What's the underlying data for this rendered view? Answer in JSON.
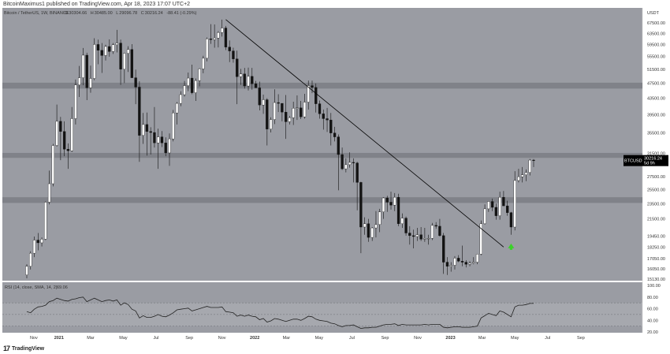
{
  "header": {
    "author": "BitcoinMaximus1",
    "published_text": "published on TradingView.com, Apr 18, 2023 17:07 UTC+2",
    "symbol_line": "Bitcoin / TetherUS, 1W, BINANCE",
    "ohlc": [
      {
        "label": "O",
        "value": "30304.66",
        "color": "#444444"
      },
      {
        "label": "H",
        "value": "30485.00",
        "color": "#444444"
      },
      {
        "label": "L",
        "value": "29096.78",
        "color": "#444444"
      },
      {
        "label": "C",
        "value": "30216.24",
        "color": "#444444"
      },
      {
        "label": "",
        "value": "-88.41 (-0.29%)",
        "color": "#444444"
      }
    ]
  },
  "price_axis": {
    "currency": "USDT",
    "ticks": [
      "67500.00",
      "63500.00",
      "59500.00",
      "55500.00",
      "51500.00",
      "47500.00",
      "43500.00",
      "39500.00",
      "35500.00",
      "31500.00",
      "27500.00",
      "25500.00",
      "23500.00",
      "21500.00",
      "19450.00",
      "18250.00",
      "17050.00",
      "16050.00",
      "15130.00"
    ],
    "price_label": {
      "symbol": "BTCUSDT",
      "price": "30216.24",
      "countdown": "5d 9h"
    }
  },
  "rsi": {
    "label": "RSI (14, close, SMA, 14, 2)",
    "value": "69.06",
    "ticks": [
      "100.00",
      "80.00",
      "60.00",
      "40.00",
      "20.00"
    ]
  },
  "time_axis": {
    "labels": [
      "Nov",
      "2021",
      "Mar",
      "May",
      "Jul",
      "Sep",
      "Nov",
      "2022",
      "Mar",
      "May",
      "Jul",
      "Sep",
      "Nov",
      "2023",
      "Mar",
      "May",
      "Jul",
      "Sep"
    ]
  },
  "footer": {
    "logo": "17",
    "brand": "TradingView"
  },
  "colors": {
    "background": "#9a9ca3",
    "zone": "#7d7f86",
    "candle_up": "#ffffff",
    "candle_down": "#131313",
    "trendline": "#000000",
    "arrow": "#3bd12a",
    "price_label_bg": "#000000"
  },
  "chart_data": {
    "type": "candlestick",
    "title": "Bitcoin / TetherUS, 1W, BINANCE",
    "xlabel": "",
    "ylabel": "",
    "x_range": [
      "2020-11",
      "2023-09"
    ],
    "y_ticks": [
      15130,
      16050,
      17050,
      18250,
      19450,
      21500,
      23500,
      25500,
      27500,
      31500,
      35500,
      39500,
      43500,
      47500,
      51500,
      55500,
      59500,
      63500,
      67500
    ],
    "ohlc_weekly": [
      [
        15500,
        16500,
        15200,
        16300
      ],
      [
        16300,
        17800,
        16000,
        17600
      ],
      [
        17600,
        19400,
        17200,
        19000
      ],
      [
        19000,
        19800,
        17900,
        18700
      ],
      [
        18700,
        19300,
        18300,
        19100
      ],
      [
        19100,
        23800,
        19000,
        23700
      ],
      [
        23700,
        28500,
        23400,
        26400
      ],
      [
        26400,
        33300,
        26000,
        33000
      ],
      [
        33000,
        41900,
        32800,
        38000
      ],
      [
        38000,
        39000,
        30300,
        35800
      ],
      [
        35800,
        38000,
        31000,
        32300
      ],
      [
        32300,
        33400,
        28800,
        32000
      ],
      [
        32000,
        41300,
        31800,
        38600
      ],
      [
        38600,
        48500,
        37300,
        47000
      ],
      [
        47000,
        52500,
        43800,
        49000
      ],
      [
        49000,
        58300,
        46900,
        55900
      ],
      [
        55900,
        56700,
        43000,
        46200
      ],
      [
        46200,
        52600,
        44900,
        48800
      ],
      [
        48800,
        61700,
        48300,
        59500
      ],
      [
        59500,
        61200,
        53000,
        57500
      ],
      [
        57500,
        60000,
        50400,
        55800
      ],
      [
        55800,
        59400,
        54200,
        58800
      ],
      [
        58800,
        61300,
        55400,
        57100
      ],
      [
        57100,
        60000,
        56300,
        59400
      ],
      [
        59400,
        64800,
        56800,
        60000
      ],
      [
        60000,
        61200,
        47000,
        51500
      ],
      [
        51500,
        56000,
        47500,
        56500
      ],
      [
        56500,
        58900,
        50700,
        57800
      ],
      [
        57800,
        59600,
        53000,
        49000
      ],
      [
        49000,
        51400,
        42000,
        46400
      ],
      [
        46400,
        48000,
        30000,
        35000
      ],
      [
        35000,
        39900,
        33300,
        37300
      ],
      [
        37300,
        40000,
        31100,
        35800
      ],
      [
        35800,
        36700,
        31300,
        35600
      ],
      [
        35600,
        41300,
        32600,
        33500
      ],
      [
        33500,
        36400,
        28800,
        34700
      ],
      [
        34700,
        35900,
        32700,
        33500
      ],
      [
        33500,
        34600,
        31000,
        31600
      ],
      [
        31600,
        35400,
        29300,
        34300
      ],
      [
        34300,
        40600,
        33800,
        39900
      ],
      [
        39900,
        42500,
        37300,
        42200
      ],
      [
        42200,
        45300,
        41500,
        44400
      ],
      [
        44400,
        48100,
        43900,
        46800
      ],
      [
        46800,
        50500,
        45300,
        48900
      ],
      [
        48900,
        52900,
        44500,
        44900
      ],
      [
        44900,
        48800,
        42800,
        48200
      ],
      [
        48200,
        51800,
        46600,
        51600
      ],
      [
        51600,
        55700,
        50300,
        54900
      ],
      [
        54900,
        62000,
        53900,
        61500
      ],
      [
        61500,
        67000,
        59700,
        61200
      ],
      [
        61200,
        66900,
        58400,
        61800
      ],
      [
        61800,
        64300,
        58500,
        63800
      ],
      [
        63800,
        68800,
        62300,
        65500
      ],
      [
        65500,
        66300,
        57600,
        58600
      ],
      [
        58600,
        60900,
        53700,
        57300
      ],
      [
        57300,
        58400,
        53500,
        54700
      ],
      [
        54700,
        57400,
        42000,
        49300
      ],
      [
        49300,
        51600,
        47000,
        50100
      ],
      [
        50100,
        51900,
        46000,
        46700
      ],
      [
        46700,
        52000,
        45500,
        49400
      ],
      [
        49400,
        51900,
        45700,
        47300
      ],
      [
        47300,
        48100,
        46400,
        46200
      ],
      [
        46200,
        47900,
        40500,
        41800
      ],
      [
        41800,
        44400,
        39700,
        43100
      ],
      [
        43100,
        43500,
        33000,
        36300
      ],
      [
        36300,
        38900,
        35600,
        38400
      ],
      [
        38400,
        45800,
        37400,
        42400
      ],
      [
        42400,
        44500,
        40100,
        42200
      ],
      [
        42200,
        42200,
        38000,
        40100
      ],
      [
        40100,
        44300,
        34300,
        37900
      ],
      [
        37900,
        39200,
        37300,
        38800
      ],
      [
        38800,
        42600,
        37200,
        41000
      ],
      [
        41000,
        44200,
        38300,
        41100
      ],
      [
        41100,
        42800,
        38500,
        39000
      ],
      [
        39000,
        44600,
        38600,
        42500
      ],
      [
        42500,
        48200,
        40700,
        46800
      ],
      [
        46800,
        48200,
        44800,
        46300
      ],
      [
        46300,
        47400,
        40000,
        42100
      ],
      [
        42100,
        42900,
        38600,
        39700
      ],
      [
        39700,
        40700,
        36200,
        38600
      ],
      [
        38600,
        41100,
        35700,
        38300
      ],
      [
        38300,
        39900,
        33000,
        35500
      ],
      [
        35500,
        36800,
        33800,
        34700
      ],
      [
        34700,
        35200,
        25400,
        31300
      ],
      [
        31300,
        32600,
        28600,
        28800
      ],
      [
        28800,
        30600,
        28200,
        29500
      ],
      [
        29500,
        31700,
        29000,
        29900
      ],
      [
        29900,
        30600,
        26600,
        29800
      ],
      [
        29800,
        30000,
        22600,
        26600
      ],
      [
        26600,
        26700,
        17600,
        20500
      ],
      [
        20500,
        21700,
        19600,
        20900
      ],
      [
        20900,
        21500,
        18800,
        19300
      ],
      [
        19300,
        20500,
        18900,
        20400
      ],
      [
        20400,
        22500,
        19300,
        20800
      ],
      [
        20800,
        22800,
        19900,
        22400
      ],
      [
        22400,
        24400,
        21500,
        24300
      ],
      [
        24300,
        24600,
        22400,
        23700
      ],
      [
        23700,
        25200,
        22700,
        23300
      ],
      [
        23300,
        25000,
        22500,
        24400
      ],
      [
        24400,
        24900,
        20600,
        20900
      ],
      [
        20900,
        22200,
        20400,
        21600
      ],
      [
        21600,
        21800,
        19500,
        19800
      ],
      [
        19800,
        20600,
        18500,
        19500
      ],
      [
        19500,
        20200,
        18100,
        19400
      ],
      [
        19400,
        20400,
        18900,
        19600
      ],
      [
        19600,
        20500,
        18900,
        19100
      ],
      [
        19100,
        20400,
        18800,
        19200
      ],
      [
        19200,
        19600,
        18500,
        19200
      ],
      [
        19200,
        21000,
        19000,
        20700
      ],
      [
        20700,
        21100,
        20300,
        20600
      ],
      [
        20600,
        21500,
        19400,
        19500
      ],
      [
        19500,
        19800,
        15600,
        16700
      ],
      [
        16700,
        17200,
        15500,
        16300
      ],
      [
        16300,
        16700,
        15800,
        16400
      ],
      [
        16400,
        17300,
        16000,
        17100
      ],
      [
        17100,
        17400,
        16700,
        16800
      ],
      [
        16800,
        18400,
        16300,
        16700
      ],
      [
        16700,
        16900,
        16200,
        16500
      ],
      [
        16500,
        16800,
        16300,
        16600
      ],
      [
        16600,
        17200,
        16500,
        16700
      ],
      [
        16700,
        17500,
        16500,
        17500
      ],
      [
        17500,
        21300,
        17400,
        20900
      ],
      [
        20900,
        23400,
        20800,
        22800
      ],
      [
        22800,
        23800,
        22400,
        23800
      ],
      [
        23800,
        24200,
        22500,
        23000
      ],
      [
        23000,
        23500,
        21400,
        21900
      ],
      [
        21900,
        25200,
        21400,
        24400
      ],
      [
        24400,
        25300,
        23300,
        23200
      ],
      [
        23200,
        23900,
        21900,
        22300
      ],
      [
        22300,
        22400,
        19600,
        20500
      ],
      [
        20500,
        28400,
        20100,
        26900
      ],
      [
        26900,
        28800,
        26600,
        27500
      ],
      [
        27500,
        29100,
        26600,
        27800
      ],
      [
        27800,
        28700,
        26800,
        28200
      ],
      [
        28200,
        30500,
        27700,
        30300
      ],
      [
        30304.66,
        30485,
        29096.78,
        30216.24
      ]
    ],
    "trendline": {
      "start": [
        "2021-11-08",
        68800
      ],
      "end": [
        "2023-04-10",
        18250
      ]
    },
    "horizontal_zones": [
      {
        "from": 30700,
        "to": 31600
      },
      {
        "from": 23600,
        "to": 24400
      },
      {
        "from": 46000,
        "to": 47600
      }
    ],
    "rsi_series": [
      55,
      53,
      59,
      63,
      64,
      66,
      72,
      74,
      78,
      76,
      74,
      73,
      76,
      77,
      79,
      80,
      72,
      75,
      78,
      75,
      72,
      74,
      75,
      73,
      75,
      66,
      70,
      67,
      59,
      56,
      44,
      48,
      45,
      45,
      47,
      50,
      47,
      46,
      49,
      53,
      58,
      59,
      60,
      61,
      56,
      58,
      60,
      62,
      64,
      62,
      62,
      62,
      63,
      55,
      54,
      53,
      47,
      49,
      47,
      49,
      47,
      46,
      41,
      43,
      37,
      39,
      43,
      42,
      40,
      38,
      40,
      42,
      42,
      40,
      43,
      47,
      46,
      42,
      40,
      39,
      38,
      35,
      34,
      31,
      29,
      31,
      31,
      32,
      29,
      26,
      27,
      27,
      28,
      28,
      30,
      32,
      33,
      33,
      34,
      31,
      33,
      32,
      32,
      32,
      32,
      32,
      33,
      32,
      33,
      33,
      33,
      28,
      27,
      28,
      29,
      29,
      28,
      28,
      28,
      29,
      30,
      44,
      48,
      52,
      50,
      48,
      56,
      54,
      50,
      46,
      63,
      66,
      66,
      67,
      69,
      69
    ]
  }
}
